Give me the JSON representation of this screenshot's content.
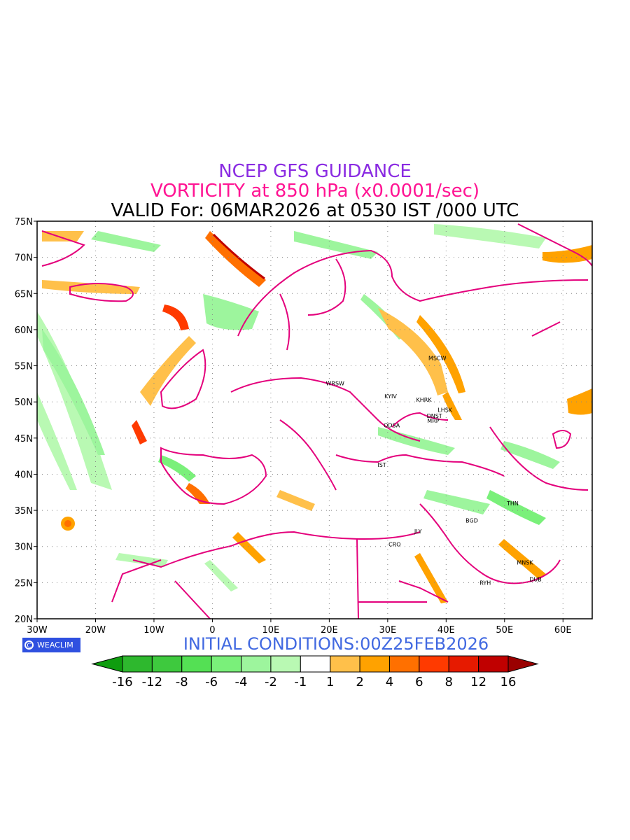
{
  "header": {
    "title": "NCEP GFS GUIDANCE",
    "subtitle": "VORTICITY at 850 hPa (x0.0001/sec)",
    "valid": "VALID For: 06MAR2026 at 0530 IST /000 UTC"
  },
  "map": {
    "lon_range": [
      -30,
      65
    ],
    "lat_range": [
      20,
      75
    ],
    "lat_ticks": [
      "20N",
      "25N",
      "30N",
      "35N",
      "40N",
      "45N",
      "50N",
      "55N",
      "60N",
      "65N",
      "70N",
      "75N"
    ],
    "lon_ticks": [
      "30W",
      "20W",
      "10W",
      "0",
      "10E",
      "20E",
      "30E",
      "40E",
      "50E",
      "60E"
    ],
    "cities": [
      {
        "name": "MSCW",
        "lon": 38.5,
        "lat": 55.8
      },
      {
        "name": "WRSW",
        "lon": 21.0,
        "lat": 52.3
      },
      {
        "name": "KYIV",
        "lon": 30.5,
        "lat": 50.5
      },
      {
        "name": "KHRK",
        "lon": 36.2,
        "lat": 50.0
      },
      {
        "name": "LHSK",
        "lon": 39.8,
        "lat": 48.6
      },
      {
        "name": "DNST",
        "lon": 38.0,
        "lat": 47.8
      },
      {
        "name": "MRP",
        "lon": 37.8,
        "lat": 47.1
      },
      {
        "name": "ODSA",
        "lon": 30.7,
        "lat": 46.5
      },
      {
        "name": "IST",
        "lon": 29.0,
        "lat": 41.0
      },
      {
        "name": "THN",
        "lon": 51.4,
        "lat": 35.7
      },
      {
        "name": "BGD",
        "lon": 44.4,
        "lat": 33.3
      },
      {
        "name": "JLY",
        "lon": 35.2,
        "lat": 31.8
      },
      {
        "name": "CRO",
        "lon": 31.2,
        "lat": 30.0
      },
      {
        "name": "MNSK",
        "lon": 53.5,
        "lat": 27.5
      },
      {
        "name": "DUB",
        "lon": 55.3,
        "lat": 25.2
      },
      {
        "name": "RYH",
        "lon": 46.7,
        "lat": 24.7
      }
    ]
  },
  "branding": {
    "logo_text": "WEACLIM"
  },
  "initial_conditions": "INITIAL CONDITIONS:00Z25FEB2026",
  "colorbar": {
    "labels": [
      "-16",
      "-12",
      "-8",
      "-6",
      "-4",
      "-2",
      "-1",
      "1",
      "2",
      "4",
      "6",
      "8",
      "12",
      "16"
    ],
    "colors": [
      "#0f9d0f",
      "#2eb82e",
      "#3ec93e",
      "#54e054",
      "#7af07a",
      "#9df59d",
      "#b9f9b3",
      "#ffffff",
      "#ffc04a",
      "#ffa200",
      "#ff7000",
      "#ff3a00",
      "#e61a00",
      "#c00000",
      "#9a0000"
    ]
  }
}
